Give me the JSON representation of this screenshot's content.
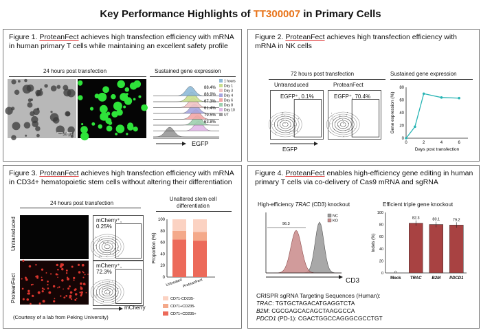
{
  "header": {
    "title_pre": "Key Performance Highlights of ",
    "title_product": "TT300007",
    "title_post": " in Primary Cells"
  },
  "fig1": {
    "caption_pre": "Figure 1. ",
    "brand": "ProteanFect",
    "caption_post": " achieves high transfection efficiency with mRNA in human primary T cells while maintaining an excellent safety profile",
    "left_header": "24 hours post transfection",
    "right_header": "Sustained gene expression",
    "scale_bar": "50 µm",
    "percents": [
      "88.4%",
      "88.9%",
      "67.3%",
      "61.4%",
      "79.5%",
      "63.8%"
    ],
    "legend": [
      "1 hours",
      "Day 1",
      "Day 3",
      "Day 4",
      "Day 6",
      "Day 8",
      "Day 10",
      "UT"
    ],
    "legend_colors": [
      "#8fbbd9",
      "#c9e08f",
      "#f1c4c4",
      "#a6a6e0",
      "#f4a7a7",
      "#9fd0b0",
      "#e2b8e8",
      "#999999"
    ],
    "xlabel": "EGFP"
  },
  "fig2": {
    "caption_pre": "Figure 2. ",
    "brand": "ProteanFect",
    "caption_post": " achieves high transfection efficiency with mRNA in NK cells",
    "left_header": "72 hours post transfection",
    "right_header": "Sustained gene expression",
    "plot1_title": "Untransduced",
    "plot1_gate": "EGFP⁺, 0.1%",
    "plot2_title": "ProteanFect",
    "plot2_gate": "EGFP⁺, 70.4%",
    "xlabel": "EGFP"
  },
  "fig3": {
    "caption_pre": "Figure 3. ",
    "brand": "ProteanFect",
    "caption_post": " achieves high transfection efficiency with mRNA in CD34+ hematopoietic stem cells without altering their differentiation",
    "left_header": "24 hours post transfection",
    "right_header": "Unaltered stem cell differentiation",
    "row1": "Untransduced",
    "row2": "ProteanFect",
    "gate1": "mCherry⁺,",
    "gate1_val": "0.25%",
    "gate2": "mCherry⁺,",
    "gate2_val": "72.3%",
    "xlabel": "mCherry",
    "courtesy": "(Courtesy of a lab from Peking University)"
  },
  "fig4": {
    "caption_pre": "Figure 4. ",
    "brand": "ProteanFect",
    "caption_post": " enables high-efficiency gene editing in human primary T cells via co-delivery of Cas9 mRNA and sgRNA",
    "left_header_pre": "High-efficiency ",
    "left_header_em": "TRAC",
    "left_header_post": " (CD3) knockout",
    "right_header": "Efficient triple gene knockout",
    "hist_legend": [
      "NC",
      "KO"
    ],
    "hist_value": "96.3",
    "xlabel": "CD3",
    "seq_title": "CRISPR sgRNA Targeting Sequences (Human):",
    "seqs": [
      {
        "gene": "TRAC",
        "seq": ": TGTGCTAGACATGAGGTCTA"
      },
      {
        "gene": "B2M",
        "seq": ": CGCGAGCACAGCTAAGGCCA"
      },
      {
        "gene": "PDCD1",
        "seq": " (PD-1): CGACTGGCCAGGGCGCCTGT"
      }
    ]
  },
  "chart_data": [
    {
      "type": "line",
      "title": "Sustained gene expression",
      "xlabel": "Days post transfection",
      "ylabel": "Gene expression (%)",
      "x": [
        0,
        1,
        2,
        4,
        6
      ],
      "y": [
        0,
        18,
        70,
        64,
        63
      ],
      "xlim": [
        0,
        7
      ],
      "ylim": [
        0,
        80
      ],
      "xticks": [
        0,
        2,
        4,
        6
      ],
      "yticks": [
        0,
        20,
        40,
        60,
        80
      ],
      "color": "#27b4b4"
    },
    {
      "type": "bar",
      "title": "Unaltered stem cell differentiation",
      "ylabel": "Proportion (%)",
      "categories": [
        "Untreated",
        "ProteanFect"
      ],
      "ylim": [
        0,
        100
      ],
      "yticks": [
        0,
        20,
        40,
        60,
        80,
        100
      ],
      "series": [
        {
          "name": "CD71+CD235+",
          "values": [
            65,
            63
          ],
          "color": "#ec6a5a"
        },
        {
          "name": "CD71+CD235-",
          "values": [
            15,
            15
          ],
          "color": "#f4a98a"
        },
        {
          "name": "CD71-CD235-",
          "values": [
            20,
            22
          ],
          "color": "#fbd2c2"
        }
      ]
    },
    {
      "type": "bar",
      "title": "Efficient triple gene knockout",
      "ylabel": "Indels (%)",
      "categories": [
        "Mock",
        "TRAC",
        "B2M",
        "PDCD1"
      ],
      "values": [
        0.5,
        82.3,
        80.1,
        79.2
      ],
      "labels": [
        "",
        "82.3",
        "80.1",
        "79.2"
      ],
      "ylim": [
        0,
        100
      ],
      "yticks": [
        0,
        20,
        40,
        60,
        80,
        100
      ],
      "color": "#a84242"
    }
  ]
}
